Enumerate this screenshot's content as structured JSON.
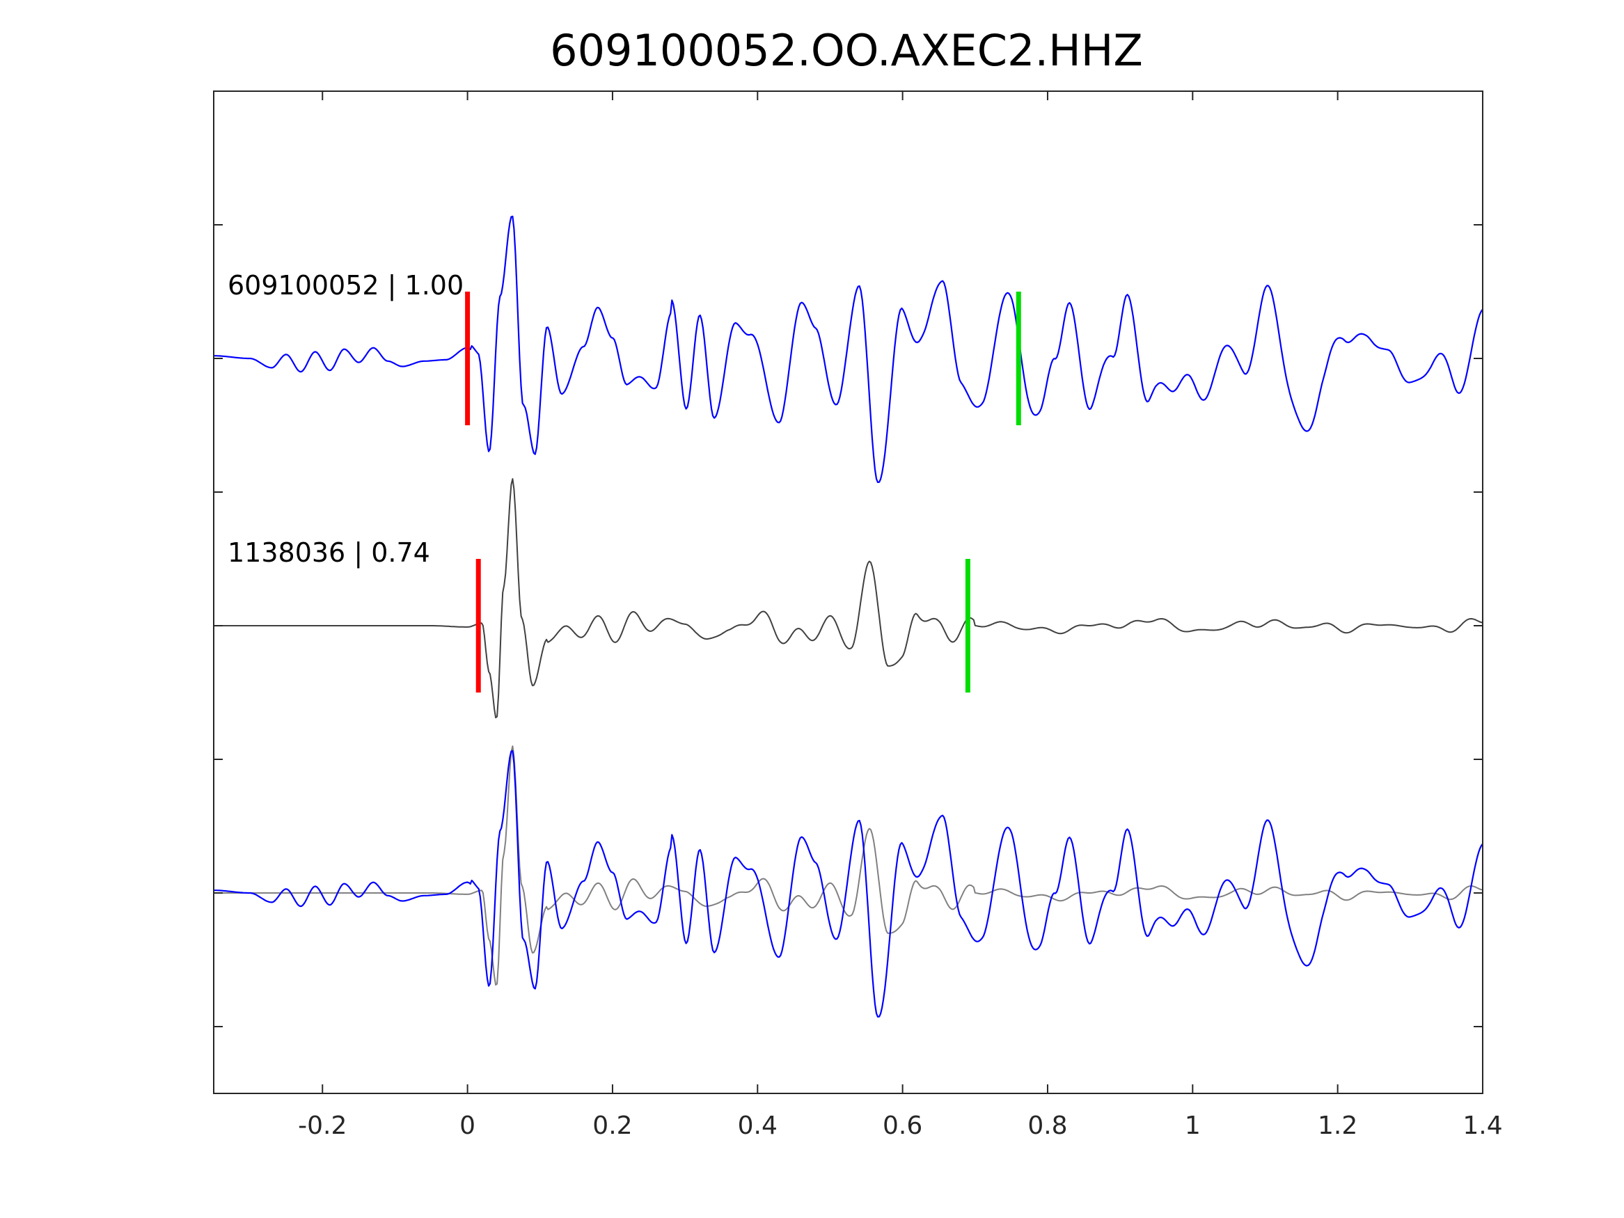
{
  "chart_data": {
    "type": "line",
    "title": "609100052.OO.AXEC2.HHZ",
    "xlabel": "",
    "ylabel": "",
    "xlim": [
      -0.35,
      1.4
    ],
    "ylim": [
      -3.5,
      4.0
    ],
    "x_ticks": [
      -0.2,
      0,
      0.2,
      0.4,
      0.6,
      0.8,
      1,
      1.2,
      1.4
    ],
    "x_tick_labels": [
      "-0.2",
      "0",
      "0.2",
      "0.4",
      "0.6",
      "0.8",
      "1",
      "1.2",
      "1.4"
    ],
    "y_ticks": [
      -3,
      -2,
      -1,
      0,
      1,
      2,
      3
    ],
    "y_tick_labels": [
      "",
      "",
      "",
      "",
      "",
      "",
      ""
    ],
    "grid": false,
    "colors": {
      "master": "#0000ff",
      "template": "#404040",
      "template_overlay": "#808080",
      "p_pick": "#ff0000",
      "s_pick": "#00dd00"
    },
    "traces": [
      {
        "label": "609100052 | 1.00",
        "offset": 2,
        "color": "#0000ff",
        "p_pick": 0.0,
        "s_pick": 0.76,
        "knots": [
          [
            -0.35,
            0.02
          ],
          [
            -0.3,
            0.0
          ],
          [
            -0.27,
            -0.07
          ],
          [
            -0.25,
            0.03
          ],
          [
            -0.23,
            -0.1
          ],
          [
            -0.21,
            0.05
          ],
          [
            -0.19,
            -0.09
          ],
          [
            -0.17,
            0.07
          ],
          [
            -0.15,
            -0.03
          ],
          [
            -0.13,
            0.08
          ],
          [
            -0.11,
            -0.02
          ],
          [
            -0.09,
            -0.06
          ],
          [
            -0.06,
            -0.02
          ],
          [
            -0.03,
            -0.01
          ],
          [
            0.0,
            0.08
          ],
          [
            0.015,
            0.01
          ],
          [
            0.03,
            -0.7
          ],
          [
            0.045,
            0.4
          ],
          [
            0.062,
            1.1
          ],
          [
            0.077,
            -0.3
          ],
          [
            0.093,
            -0.75
          ],
          [
            0.11,
            0.25
          ],
          [
            0.13,
            -0.25
          ],
          [
            0.16,
            0.05
          ],
          [
            0.18,
            0.4
          ],
          [
            0.2,
            0.15
          ],
          [
            0.22,
            -0.2
          ],
          [
            0.26,
            -0.1
          ],
          [
            0.28,
            0.2
          ],
          [
            0.3,
            -0.4
          ],
          [
            0.32,
            0.4
          ],
          [
            0.34,
            -0.35
          ],
          [
            0.37,
            0.2
          ],
          [
            0.39,
            0.15
          ],
          [
            0.43,
            -0.45
          ],
          [
            0.46,
            0.45
          ],
          [
            0.48,
            0.2
          ],
          [
            0.51,
            -0.35
          ],
          [
            0.54,
            0.5
          ],
          [
            0.565,
            -0.8
          ],
          [
            0.6,
            0.2
          ],
          [
            0.63,
            0.3
          ],
          [
            0.655,
            0.55
          ],
          [
            0.68,
            -0.35
          ],
          [
            0.71,
            -0.05
          ],
          [
            0.75,
            0.25
          ],
          [
            0.79,
            -0.4
          ],
          [
            0.81,
            0.0
          ],
          [
            0.83,
            0.4
          ],
          [
            0.86,
            -0.35
          ],
          [
            0.89,
            0.0
          ],
          [
            0.91,
            0.45
          ],
          [
            0.94,
            -0.25
          ],
          [
            0.97,
            -0.25
          ],
          [
            1.0,
            -0.15
          ],
          [
            1.03,
            -0.2
          ],
          [
            1.07,
            0.1
          ],
          [
            1.1,
            0.4
          ],
          [
            1.15,
            -0.5
          ],
          [
            1.18,
            -0.15
          ],
          [
            1.21,
            0.15
          ],
          [
            1.24,
            0.2
          ],
          [
            1.27,
            -0.05
          ],
          [
            1.3,
            -0.05
          ],
          [
            1.33,
            -0.15
          ],
          [
            1.36,
            -0.1
          ],
          [
            1.4,
            0.2
          ]
        ],
        "oscillations": [
          [
            0.005,
            0.28,
            0.12
          ],
          [
            0.28,
            0.95,
            0.2
          ],
          [
            0.95,
            1.4,
            0.18
          ]
        ]
      },
      {
        "label": "1138036 | 0.74",
        "offset": 0,
        "color": "#404040",
        "p_pick": 0.015,
        "s_pick": 0.69,
        "knots": [
          [
            -0.35,
            0.0
          ],
          [
            -0.05,
            0.0
          ],
          [
            0.0,
            -0.01
          ],
          [
            0.02,
            0.02
          ],
          [
            0.03,
            -0.35
          ],
          [
            0.04,
            -0.7
          ],
          [
            0.05,
            0.3
          ],
          [
            0.062,
            1.1
          ],
          [
            0.075,
            0.05
          ],
          [
            0.09,
            -0.45
          ],
          [
            0.11,
            -0.1
          ],
          [
            0.14,
            -0.05
          ],
          [
            0.18,
            0.0
          ],
          [
            0.21,
            -0.02
          ],
          [
            0.25,
            0.02
          ],
          [
            0.3,
            0.04
          ],
          [
            0.33,
            -0.15
          ],
          [
            0.36,
            0.0
          ],
          [
            0.4,
            0.05
          ],
          [
            0.43,
            -0.05
          ],
          [
            0.46,
            -0.08
          ],
          [
            0.5,
            0.0
          ],
          [
            0.53,
            -0.1
          ],
          [
            0.555,
            0.4
          ],
          [
            0.58,
            -0.2
          ],
          [
            0.6,
            -0.3
          ],
          [
            0.62,
            0.1
          ],
          [
            0.65,
            0.0
          ],
          [
            0.68,
            -0.05
          ],
          [
            0.72,
            0.02
          ],
          [
            0.76,
            0.0
          ],
          [
            0.8,
            -0.05
          ],
          [
            0.85,
            0.0
          ],
          [
            0.9,
            0.0
          ],
          [
            0.95,
            0.05
          ],
          [
            1.0,
            -0.05
          ],
          [
            1.05,
            0.0
          ],
          [
            1.1,
            0.02
          ],
          [
            1.15,
            0.0
          ],
          [
            1.2,
            -0.02
          ],
          [
            1.25,
            0.0
          ],
          [
            1.3,
            0.0
          ],
          [
            1.35,
            -0.03
          ],
          [
            1.4,
            0.05
          ]
        ],
        "oscillations": [
          [
            0.11,
            0.7,
            0.11
          ],
          [
            0.7,
            1.4,
            0.04
          ]
        ]
      },
      {
        "label": "",
        "offset": -2,
        "overlay": true,
        "color": "#0000ff",
        "overlay_color": "#808080"
      }
    ]
  }
}
